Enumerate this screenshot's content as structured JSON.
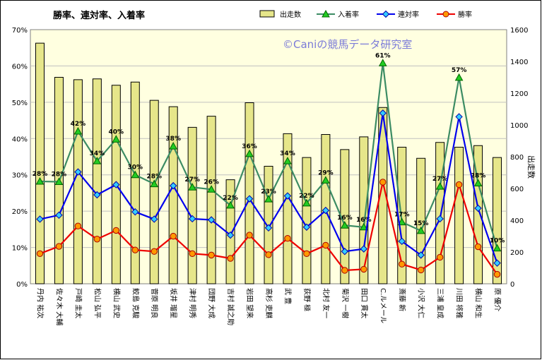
{
  "chart_data": {
    "type": "bar+line",
    "title": "勝率、連対率、入着率",
    "watermark": "©Caniの競馬データ研究室",
    "y2label": "出走数",
    "categories": [
      "丹内 祐次",
      "佐々木 大輔",
      "戸崎 圭太",
      "松山 弘平",
      "横山 武史",
      "鮫島 克駿",
      "菅原 明良",
      "坂井 瑠星",
      "津村 明秀",
      "団野 大成",
      "吉村 誠之助",
      "岩田 望来",
      "高杉 吏麒",
      "武 豊",
      "荻野 極",
      "北村 友一",
      "菊沢 一樹",
      "田口 貫太",
      "C.ルメール",
      "斎藤 新",
      "小沢 大仁",
      "三浦 皇成",
      "川田 将雅",
      "横山 和生",
      "原 優介"
    ],
    "y_left": {
      "min": 0,
      "max": 70,
      "ticks": [
        "0%",
        "10%",
        "20%",
        "30%",
        "40%",
        "50%",
        "60%",
        "70%"
      ]
    },
    "y_right": {
      "min": 0,
      "max": 1600,
      "ticks": [
        "0",
        "200",
        "400",
        "600",
        "800",
        "1000",
        "1200",
        "1400",
        "1600"
      ]
    },
    "series": [
      {
        "name": "出走数",
        "type": "bar",
        "axis": "right",
        "color": "#e6e68a",
        "values": [
          1515,
          1300,
          1285,
          1290,
          1250,
          1270,
          1155,
          1115,
          985,
          1055,
          655,
          1140,
          740,
          945,
          795,
          940,
          845,
          925,
          1110,
          860,
          790,
          890,
          860,
          870,
          795
        ]
      },
      {
        "name": "入着率",
        "type": "line",
        "axis": "left",
        "color": "#3c8c64",
        "marker_color": "#22cc22",
        "values": [
          28.2,
          28.1,
          42.0,
          33.8,
          39.8,
          30.0,
          27.5,
          37.9,
          26.6,
          26.0,
          21.6,
          35.8,
          23.3,
          33.8,
          22.2,
          28.5,
          16.1,
          15.6,
          60.8,
          17.0,
          14.6,
          26.8,
          56.8,
          27.7,
          9.8
        ],
        "labels": [
          "28%",
          "28%",
          "42%",
          "34%",
          "40%",
          "30%",
          "28%",
          "38%",
          "27%",
          "26%",
          "22%",
          "36%",
          "23%",
          "34%",
          "22%",
          "29%",
          "16%",
          "16%",
          "61%",
          "17%",
          "15%",
          "27%",
          "57%",
          "28%",
          "10%"
        ]
      },
      {
        "name": "連対率",
        "type": "line",
        "axis": "left",
        "color": "#0000ee",
        "marker_color": "#33ccff",
        "values": [
          17.8,
          18.9,
          30.8,
          24.5,
          27.3,
          19.8,
          17.8,
          27.0,
          17.9,
          17.6,
          13.4,
          23.4,
          15.4,
          24.2,
          15.6,
          20.2,
          8.9,
          9.6,
          47.0,
          11.7,
          7.9,
          17.9,
          46.0,
          20.8,
          5.7
        ]
      },
      {
        "name": "勝率",
        "type": "line",
        "axis": "left",
        "color": "#ee0000",
        "marker_color": "#ff9900",
        "values": [
          8.3,
          10.3,
          15.9,
          12.3,
          14.7,
          9.3,
          8.9,
          13.1,
          8.3,
          7.9,
          7.0,
          13.4,
          8.0,
          12.5,
          8.3,
          10.6,
          3.7,
          4.0,
          28.0,
          5.4,
          3.8,
          7.3,
          27.3,
          10.2,
          2.6
        ]
      }
    ],
    "legend_position": "top-right",
    "grid": true
  }
}
